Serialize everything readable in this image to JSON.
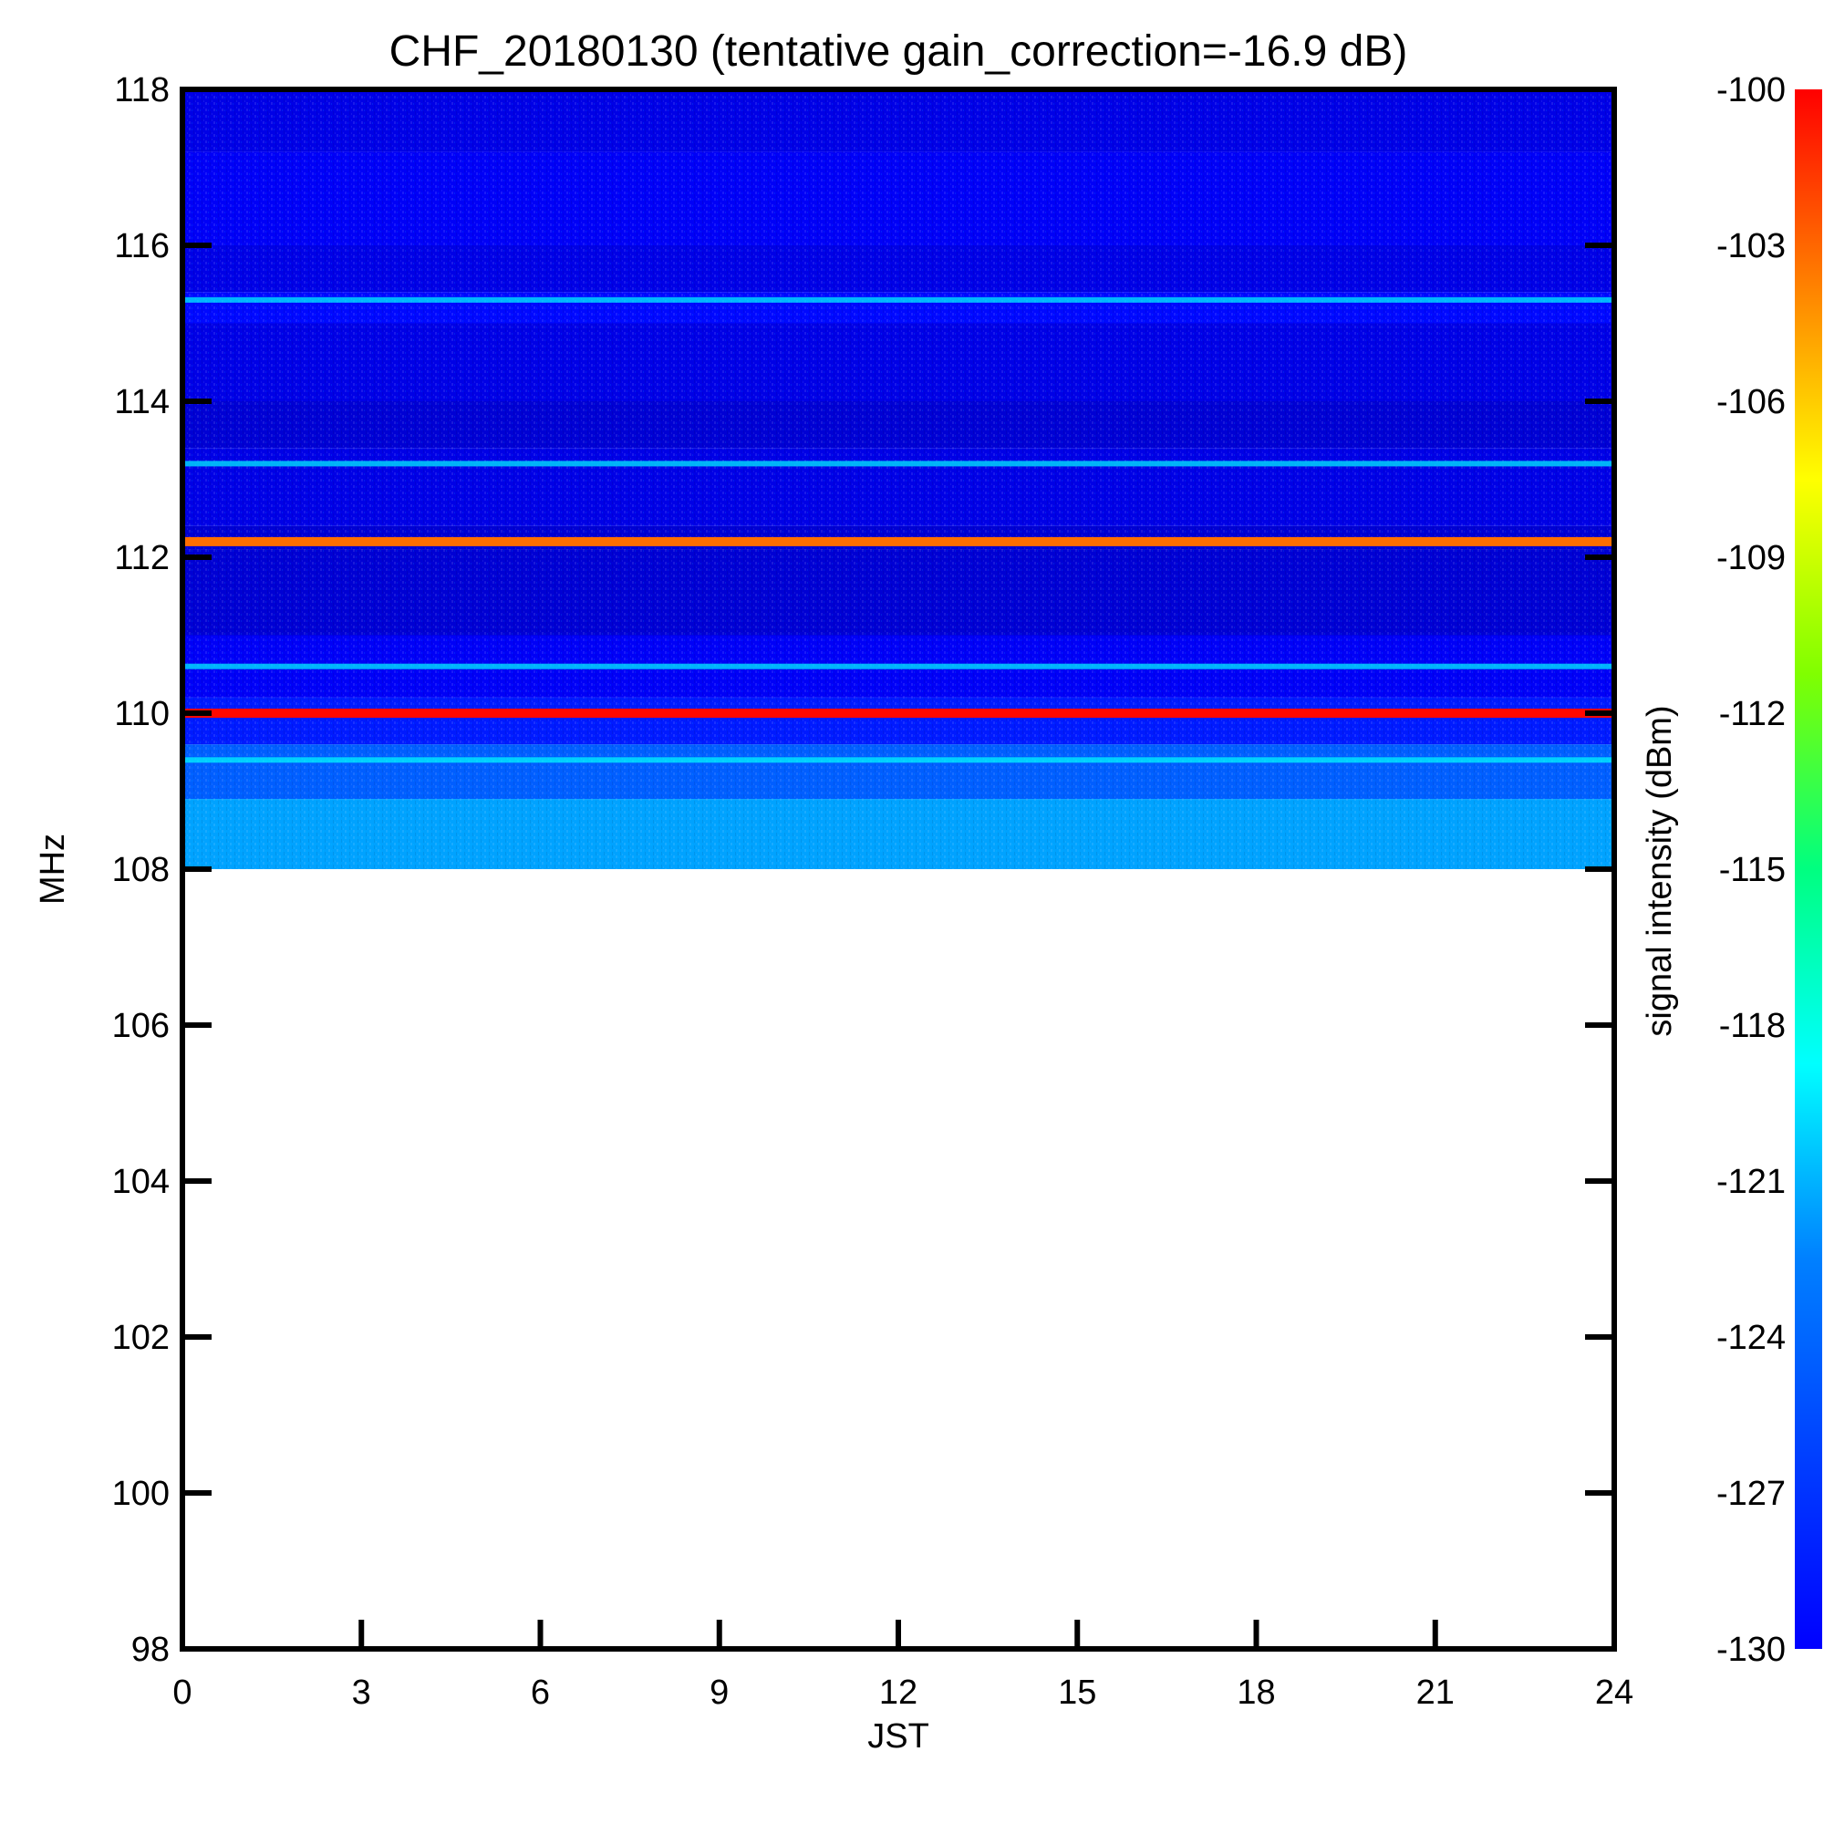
{
  "chart_data": {
    "type": "heatmap",
    "title": "CHF_20180130 (tentative gain_correction=-16.9 dB)",
    "xlabel": "JST",
    "ylabel": "MHz",
    "xlim": [
      0,
      24
    ],
    "ylim": [
      98,
      118
    ],
    "x_ticks": [
      "0",
      "3",
      "6",
      "9",
      "12",
      "15",
      "18",
      "21",
      "24"
    ],
    "y_ticks": [
      "118",
      "116",
      "114",
      "112",
      "110",
      "108",
      "106",
      "104",
      "102",
      "100",
      "98"
    ],
    "data_frequency_range": [
      108,
      118
    ],
    "colorbar": {
      "label": "signal intensity (dBm)",
      "range": [
        -130,
        -100
      ],
      "ticks": [
        "-100",
        "-103",
        "-106",
        "-109",
        "-112",
        "-115",
        "-118",
        "-121",
        "-124",
        "-127",
        "-130"
      ],
      "colormap": "jet"
    },
    "bands": [
      {
        "from": 118.0,
        "to": 117.2,
        "level": -127
      },
      {
        "from": 117.2,
        "to": 116.0,
        "level": -126.5
      },
      {
        "from": 116.0,
        "to": 115.4,
        "level": -127
      },
      {
        "from": 115.4,
        "to": 115.0,
        "level": -126
      },
      {
        "from": 115.0,
        "to": 114.0,
        "level": -127
      },
      {
        "from": 114.0,
        "to": 113.4,
        "level": -127.5
      },
      {
        "from": 113.4,
        "to": 112.4,
        "level": -127
      },
      {
        "from": 112.4,
        "to": 112.1,
        "level": -127.5
      },
      {
        "from": 112.1,
        "to": 111.0,
        "level": -127.5
      },
      {
        "from": 111.0,
        "to": 110.2,
        "level": -126.5
      },
      {
        "from": 110.2,
        "to": 109.6,
        "level": -125.5
      },
      {
        "from": 109.6,
        "to": 108.9,
        "level": -123.5
      },
      {
        "from": 108.9,
        "to": 108.0,
        "level": -121.5
      }
    ],
    "strong_signals": [
      {
        "freq_mhz": 110.0,
        "level": -104
      },
      {
        "freq_mhz": 112.2,
        "level": -107
      }
    ],
    "weak_lines_mhz": [
      115.3,
      113.2,
      110.6,
      109.4
    ]
  }
}
